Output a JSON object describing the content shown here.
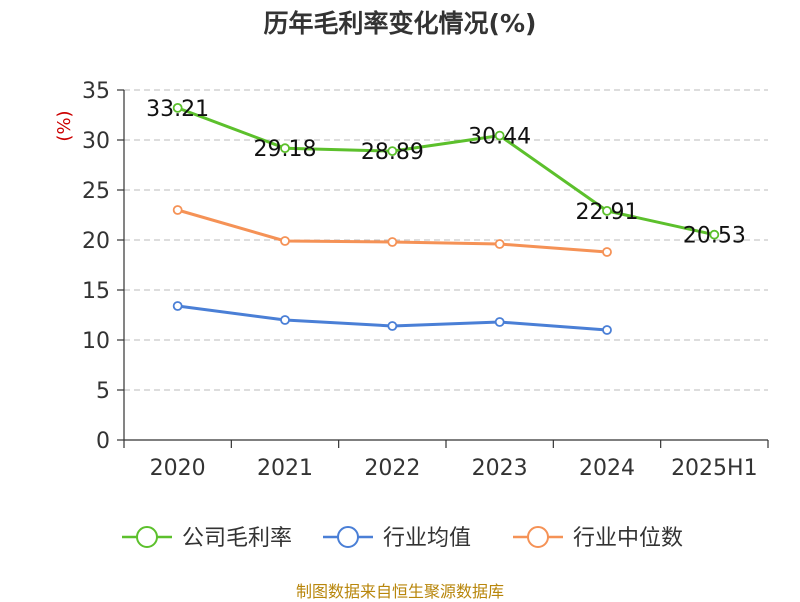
{
  "chart_data": {
    "type": "line",
    "title": "历年毛利率变化情况(%)",
    "ylabel": "(%)",
    "xlabel": "",
    "categories": [
      "2020",
      "2021",
      "2022",
      "2023",
      "2024",
      "2025H1"
    ],
    "ylim": [
      0,
      35
    ],
    "yticks": [
      0,
      5,
      10,
      15,
      20,
      25,
      30,
      35
    ],
    "grid": "horizontal dashed",
    "legend_position": "bottom",
    "series": [
      {
        "name": "公司毛利率",
        "color": "#5cc02c",
        "values": [
          33.21,
          29.18,
          28.89,
          30.44,
          22.91,
          20.53
        ],
        "labels": [
          "33.21",
          "29.18",
          "28.89",
          "30.44",
          "22.91",
          "20.53"
        ]
      },
      {
        "name": "行业均值",
        "color": "#4a7fd6",
        "values": [
          13.4,
          12.0,
          11.4,
          11.8,
          11.0,
          null
        ]
      },
      {
        "name": "行业中位数",
        "color": "#f59256",
        "values": [
          23.0,
          19.9,
          19.8,
          19.6,
          18.8,
          null
        ]
      }
    ]
  },
  "source": "制图数据来自恒生聚源数据库"
}
